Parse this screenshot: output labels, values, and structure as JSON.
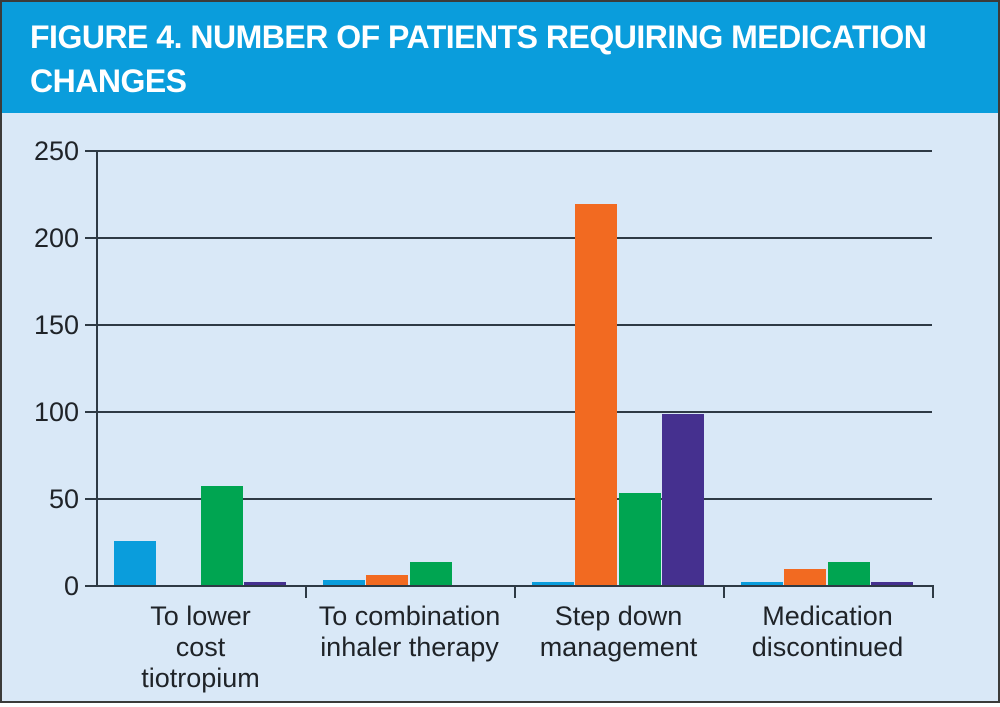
{
  "header": {
    "title_line1": "FIGURE 4. NUMBER OF PATIENTS REQUIRING MEDICATION",
    "title_line2": "CHANGES",
    "background_color": "#0a9ddc",
    "title_color": "#ffffff"
  },
  "chart_data": {
    "type": "bar",
    "title": "FIGURE 4. NUMBER OF PATIENTS REQUIRING MEDICATION CHANGES",
    "xlabel": "",
    "ylabel": "",
    "categories": [
      "To lower\ncost\ntiotropium",
      "To combination\ninhaler therapy",
      "Step down\nmanagement",
      "Medication\ndiscontinued"
    ],
    "series": [
      {
        "name": "series-blue",
        "color": "#0a9ddc",
        "values": [
          25,
          3,
          2,
          2
        ]
      },
      {
        "name": "series-orange",
        "color": "#f26a21",
        "values": [
          0,
          6,
          219,
          9
        ]
      },
      {
        "name": "series-green",
        "color": "#00a551",
        "values": [
          57,
          13,
          53,
          13
        ]
      },
      {
        "name": "series-purple",
        "color": "#45308f",
        "values": [
          2,
          0,
          98,
          2
        ]
      }
    ],
    "yticks": [
      0,
      50,
      100,
      150,
      200,
      250
    ],
    "ylim": [
      0,
      250
    ],
    "grid": true,
    "legend": "none",
    "plot_background": "#d9e8f7",
    "gridline_color": "#2e3a45",
    "text_color": "#1f2328"
  }
}
